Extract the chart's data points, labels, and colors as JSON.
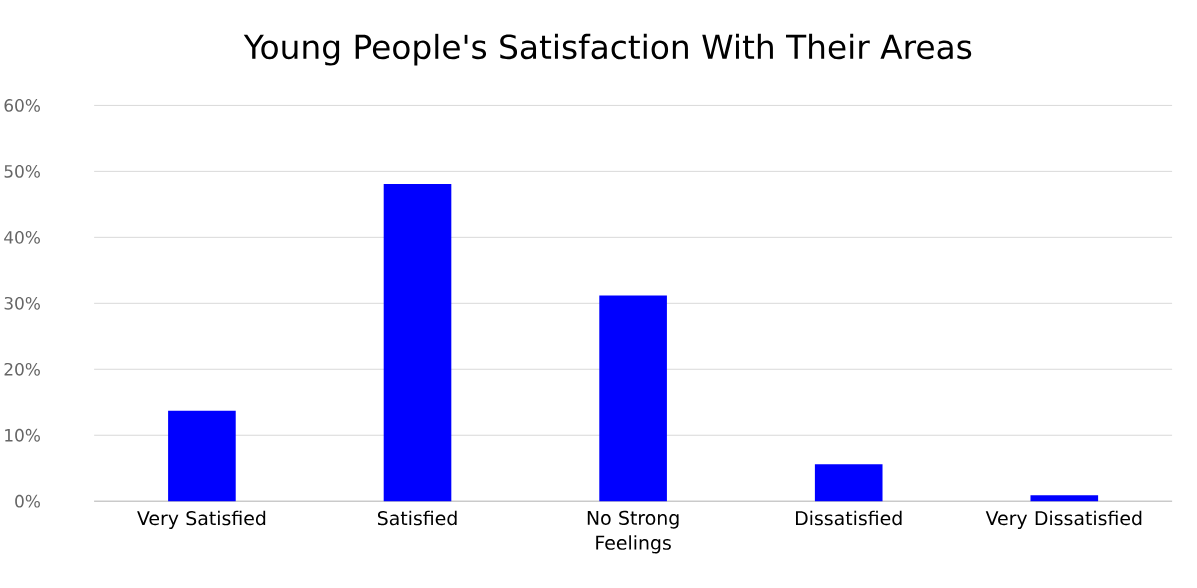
{
  "chart_data": {
    "type": "bar",
    "title": "Young People's Satisfaction With Their Areas",
    "categories": [
      "Very Satisfied",
      "Satisfied",
      "No Strong Feelings",
      "Dissatisfied",
      "Very Dissatisfied"
    ],
    "values": [
      13.7,
      48.1,
      31.2,
      5.6,
      0.9
    ],
    "color": "#0000ff",
    "ylim": [
      0,
      60
    ],
    "yticks": [
      {
        "value": 0,
        "label": "0%"
      },
      {
        "value": 10,
        "label": "10%"
      },
      {
        "value": 20,
        "label": "20%"
      },
      {
        "value": 30,
        "label": "30%"
      },
      {
        "value": 40,
        "label": "40%"
      },
      {
        "value": 50,
        "label": "50%"
      },
      {
        "value": 60,
        "label": "60%"
      }
    ],
    "grid": "y"
  }
}
